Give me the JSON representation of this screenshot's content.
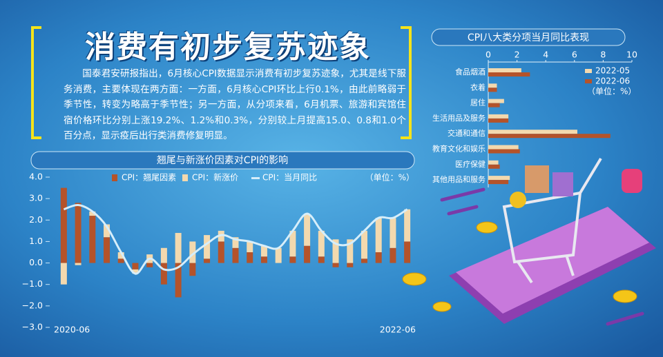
{
  "header": {
    "title": "消费有初步复苏迹象",
    "body": "国泰君安研报指出，6月核心CPI数据显示消费有初步复苏迹象，尤其是线下服务消费，主要体现在两方面：一方面，6月核心CPI环比上行0.1%，由此前略弱于季节性，转变为略高于季节性；另一方面，从分项来看，6月机票、旅游和宾馆住宿价格环比分别上涨19.2%、1.2%和0.3%，分别较上月提高15.0、0.8和1.0个百分点，显示疫后出行类消费修复明显。"
  },
  "chart_data": [
    {
      "type": "bar",
      "title": "翘尾与新涨价因素对CPI的影响",
      "unit_note": "（单位：%）",
      "categories": [
        "2020-06",
        null,
        null,
        null,
        null,
        null,
        null,
        null,
        null,
        null,
        null,
        null,
        null,
        null,
        null,
        null,
        null,
        null,
        null,
        null,
        null,
        null,
        null,
        null,
        "2022-06"
      ],
      "series": [
        {
          "name": "CPI：翘尾因素",
          "color": "#b4532a",
          "values": [
            3.5,
            2.8,
            2.2,
            1.2,
            0.2,
            -0.3,
            -0.2,
            -1.0,
            -1.6,
            -0.6,
            0.2,
            1.0,
            0.7,
            0.5,
            0.3,
            0.0,
            0.3,
            0.8,
            0.3,
            -0.2,
            -0.2,
            0.2,
            0.5,
            0.7,
            1.0
          ]
        },
        {
          "name": "CPI：新涨价",
          "color": "#f3d9ae",
          "values": [
            -1.0,
            -0.1,
            0.2,
            0.6,
            0.3,
            -0.2,
            0.4,
            0.7,
            1.4,
            1.0,
            1.1,
            0.5,
            0.5,
            0.5,
            0.5,
            0.7,
            1.2,
            1.5,
            1.2,
            1.1,
            1.1,
            1.3,
            1.6,
            1.4,
            1.5
          ]
        },
        {
          "name": "CPI：当月同比",
          "color": "#d6eefa",
          "type": "line",
          "values": [
            2.5,
            2.7,
            2.4,
            1.7,
            0.5,
            -0.5,
            0.2,
            -0.3,
            -0.2,
            0.4,
            0.9,
            1.3,
            1.1,
            1.0,
            0.8,
            0.7,
            1.5,
            2.3,
            1.5,
            0.9,
            0.9,
            1.5,
            2.1,
            2.1,
            2.5
          ]
        }
      ],
      "ylim": [
        -3,
        4
      ],
      "yticks": [
        {
          "value": 4,
          "label": "4.0"
        },
        {
          "value": 3,
          "label": "3.0"
        },
        {
          "value": 2,
          "label": "2.0"
        },
        {
          "value": 1,
          "label": "1.0"
        },
        {
          "value": 0,
          "label": "0.0"
        },
        {
          "value": -1,
          "label": "−1.0"
        },
        {
          "value": -2,
          "label": "−2.0"
        },
        {
          "value": -3,
          "label": "−3.0"
        }
      ]
    },
    {
      "type": "hbar",
      "title": "CPI八大类分项当月同比表现",
      "unit_note": "（单位：%）",
      "categories": [
        "食品烟酒",
        "衣着",
        "居住",
        "生活用品及服务",
        "交通和通信",
        "教育文化和娱乐",
        "医疗保健",
        "其他用品和服务"
      ],
      "series": [
        {
          "name": "2022-05",
          "color": "#f3d9ae",
          "values": [
            2.3,
            0.6,
            1.1,
            1.4,
            6.2,
            2.1,
            0.7,
            1.5
          ]
        },
        {
          "name": "2022-06",
          "color": "#b4532a",
          "values": [
            2.9,
            0.6,
            0.8,
            1.4,
            8.5,
            2.2,
            0.8,
            1.4
          ]
        }
      ],
      "xlim": [
        0,
        10
      ],
      "xticks": [
        0,
        2,
        4,
        6,
        8,
        10
      ]
    }
  ]
}
